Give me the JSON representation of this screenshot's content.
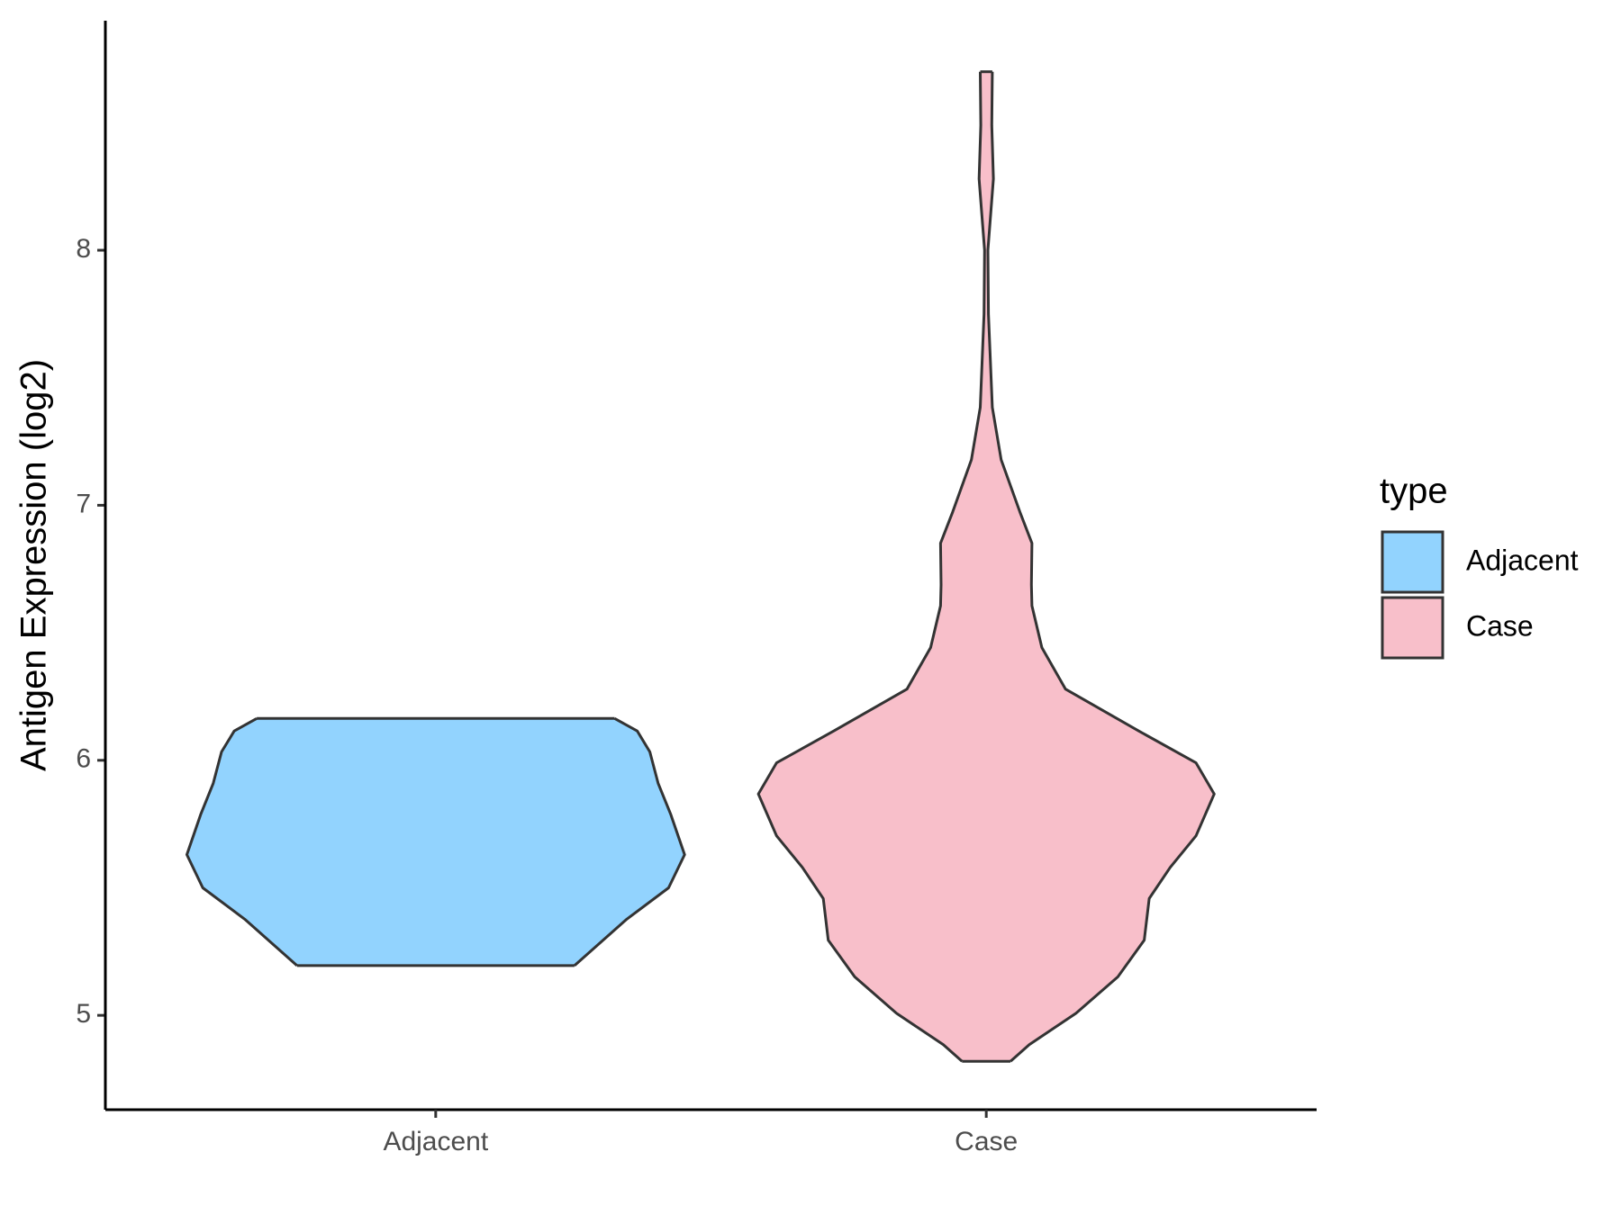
{
  "chart_data": {
    "type": "violin",
    "y_label": "Antigen Expression (log2)",
    "categories": [
      "Adjacent",
      "Case"
    ],
    "ylim": [
      4.63,
      8.9
    ],
    "yticks": [
      5,
      6,
      7,
      8
    ],
    "grid": false,
    "legend": {
      "title": "type",
      "position": "right"
    },
    "series": [
      {
        "name": "Adjacent",
        "color": "#92d3fe",
        "y": [
          5.195,
          5.377,
          5.5,
          5.63,
          5.787,
          5.91,
          6.033,
          6.115,
          6.164
        ],
        "width": [
          0.252,
          0.347,
          0.423,
          0.452,
          0.427,
          0.404,
          0.389,
          0.366,
          0.325
        ]
      },
      {
        "name": "Case",
        "color": "#f8bfca",
        "y": [
          4.82,
          4.885,
          5.008,
          5.151,
          5.295,
          5.458,
          5.58,
          5.704,
          5.868,
          5.99,
          6.115,
          6.279,
          6.442,
          6.606,
          6.688,
          6.851,
          6.974,
          7.179,
          7.384,
          7.75,
          8.0,
          8.28,
          8.49,
          8.7
        ],
        "width": [
          0.044,
          0.078,
          0.163,
          0.239,
          0.287,
          0.296,
          0.334,
          0.381,
          0.414,
          0.381,
          0.277,
          0.144,
          0.101,
          0.083,
          0.082,
          0.083,
          0.061,
          0.027,
          0.011,
          0.004,
          0.003,
          0.013,
          0.01,
          0.011
        ]
      }
    ]
  }
}
